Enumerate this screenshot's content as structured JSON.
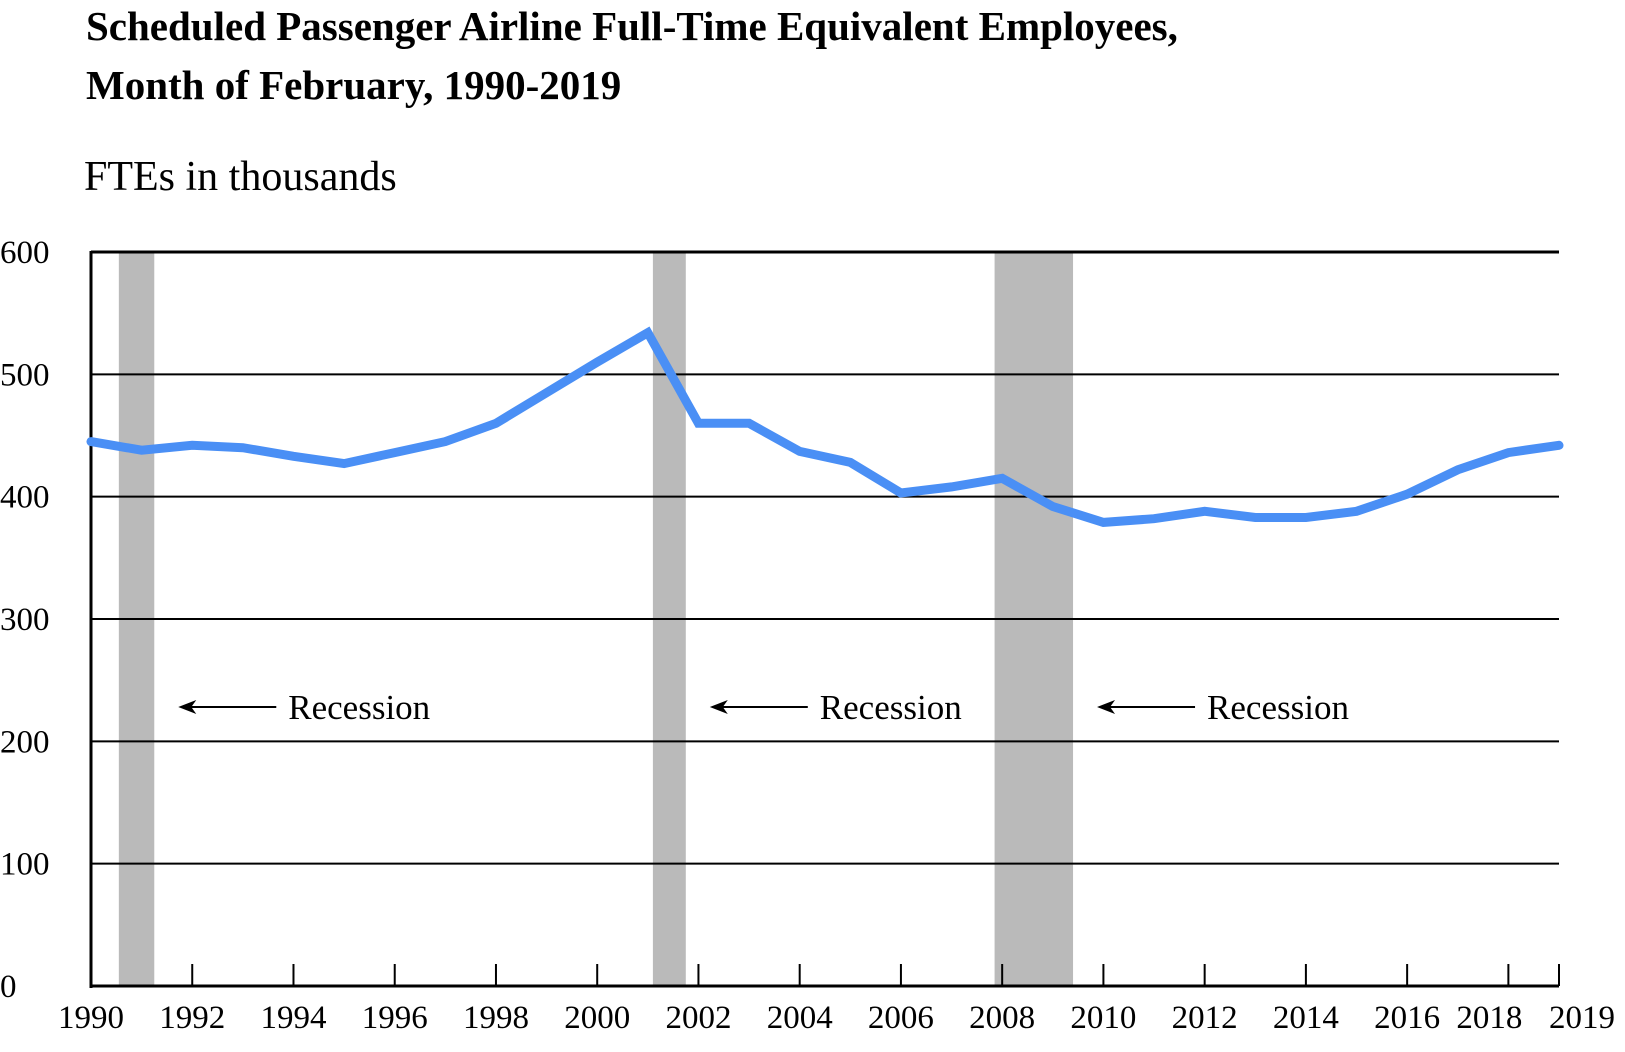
{
  "chart_data": {
    "type": "line",
    "title_lines": [
      "Scheduled Passenger Airline Full-Time Equivalent Employees,",
      "Month of February, 1990-2019"
    ],
    "subtitle": "FTEs in thousands",
    "xlabel": "",
    "ylabel": "",
    "ylim": [
      0,
      600
    ],
    "xlim": [
      1990,
      2019
    ],
    "yticks": [
      "0",
      "100",
      "200",
      "300",
      "400",
      "500",
      "600"
    ],
    "xticks": [
      "1990",
      "1992",
      "1994",
      "1996",
      "1998",
      "2000",
      "2002",
      "2004",
      "2006",
      "2008",
      "2010",
      "2012",
      "2014",
      "2016",
      "2018",
      "2019"
    ],
    "grid": "horizontal",
    "line_color": "#4a8ff5",
    "recession_color": "#bababa",
    "x": [
      1990,
      1991,
      1992,
      1993,
      1994,
      1995,
      1996,
      1997,
      1998,
      1999,
      2000,
      2001,
      2002,
      2003,
      2004,
      2005,
      2006,
      2007,
      2008,
      2009,
      2010,
      2011,
      2012,
      2013,
      2014,
      2015,
      2016,
      2017,
      2018,
      2019
    ],
    "series": [
      {
        "values": [
          445,
          438,
          442,
          440,
          433,
          427,
          436,
          445,
          460,
          485,
          510,
          534,
          460,
          460,
          437,
          428,
          403,
          408,
          415,
          392,
          379,
          382,
          388,
          383,
          383,
          388,
          402,
          422,
          436,
          442
        ]
      }
    ],
    "recessions": [
      {
        "start": 1990.55,
        "end": 1991.25,
        "label": "Recession"
      },
      {
        "start": 2001.1,
        "end": 2001.75,
        "label": "Recession"
      },
      {
        "start": 2007.85,
        "end": 2009.4,
        "label": "Recession"
      }
    ]
  }
}
